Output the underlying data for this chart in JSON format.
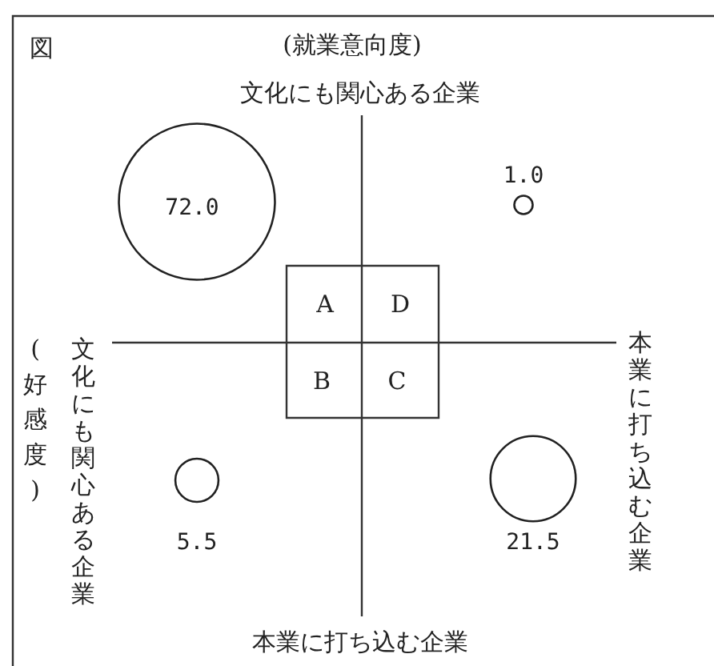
{
  "chart_data": {
    "type": "other",
    "title": "図",
    "ylabel": "(就業意向度)",
    "xlabel": "(好感度)",
    "categories": [
      "A",
      "D",
      "B",
      "C"
    ],
    "values": [
      72.0,
      1.0,
      5.5,
      21.5
    ],
    "value_labels": [
      "72.0",
      "1.0",
      "5.5",
      "21.5"
    ],
    "data_labels": true,
    "annotations": [
      "文化にも関心ある企業",
      "本業に打ち込む企業",
      "文化にも関心ある企業",
      "本業に打ち込む企業"
    ]
  }
}
